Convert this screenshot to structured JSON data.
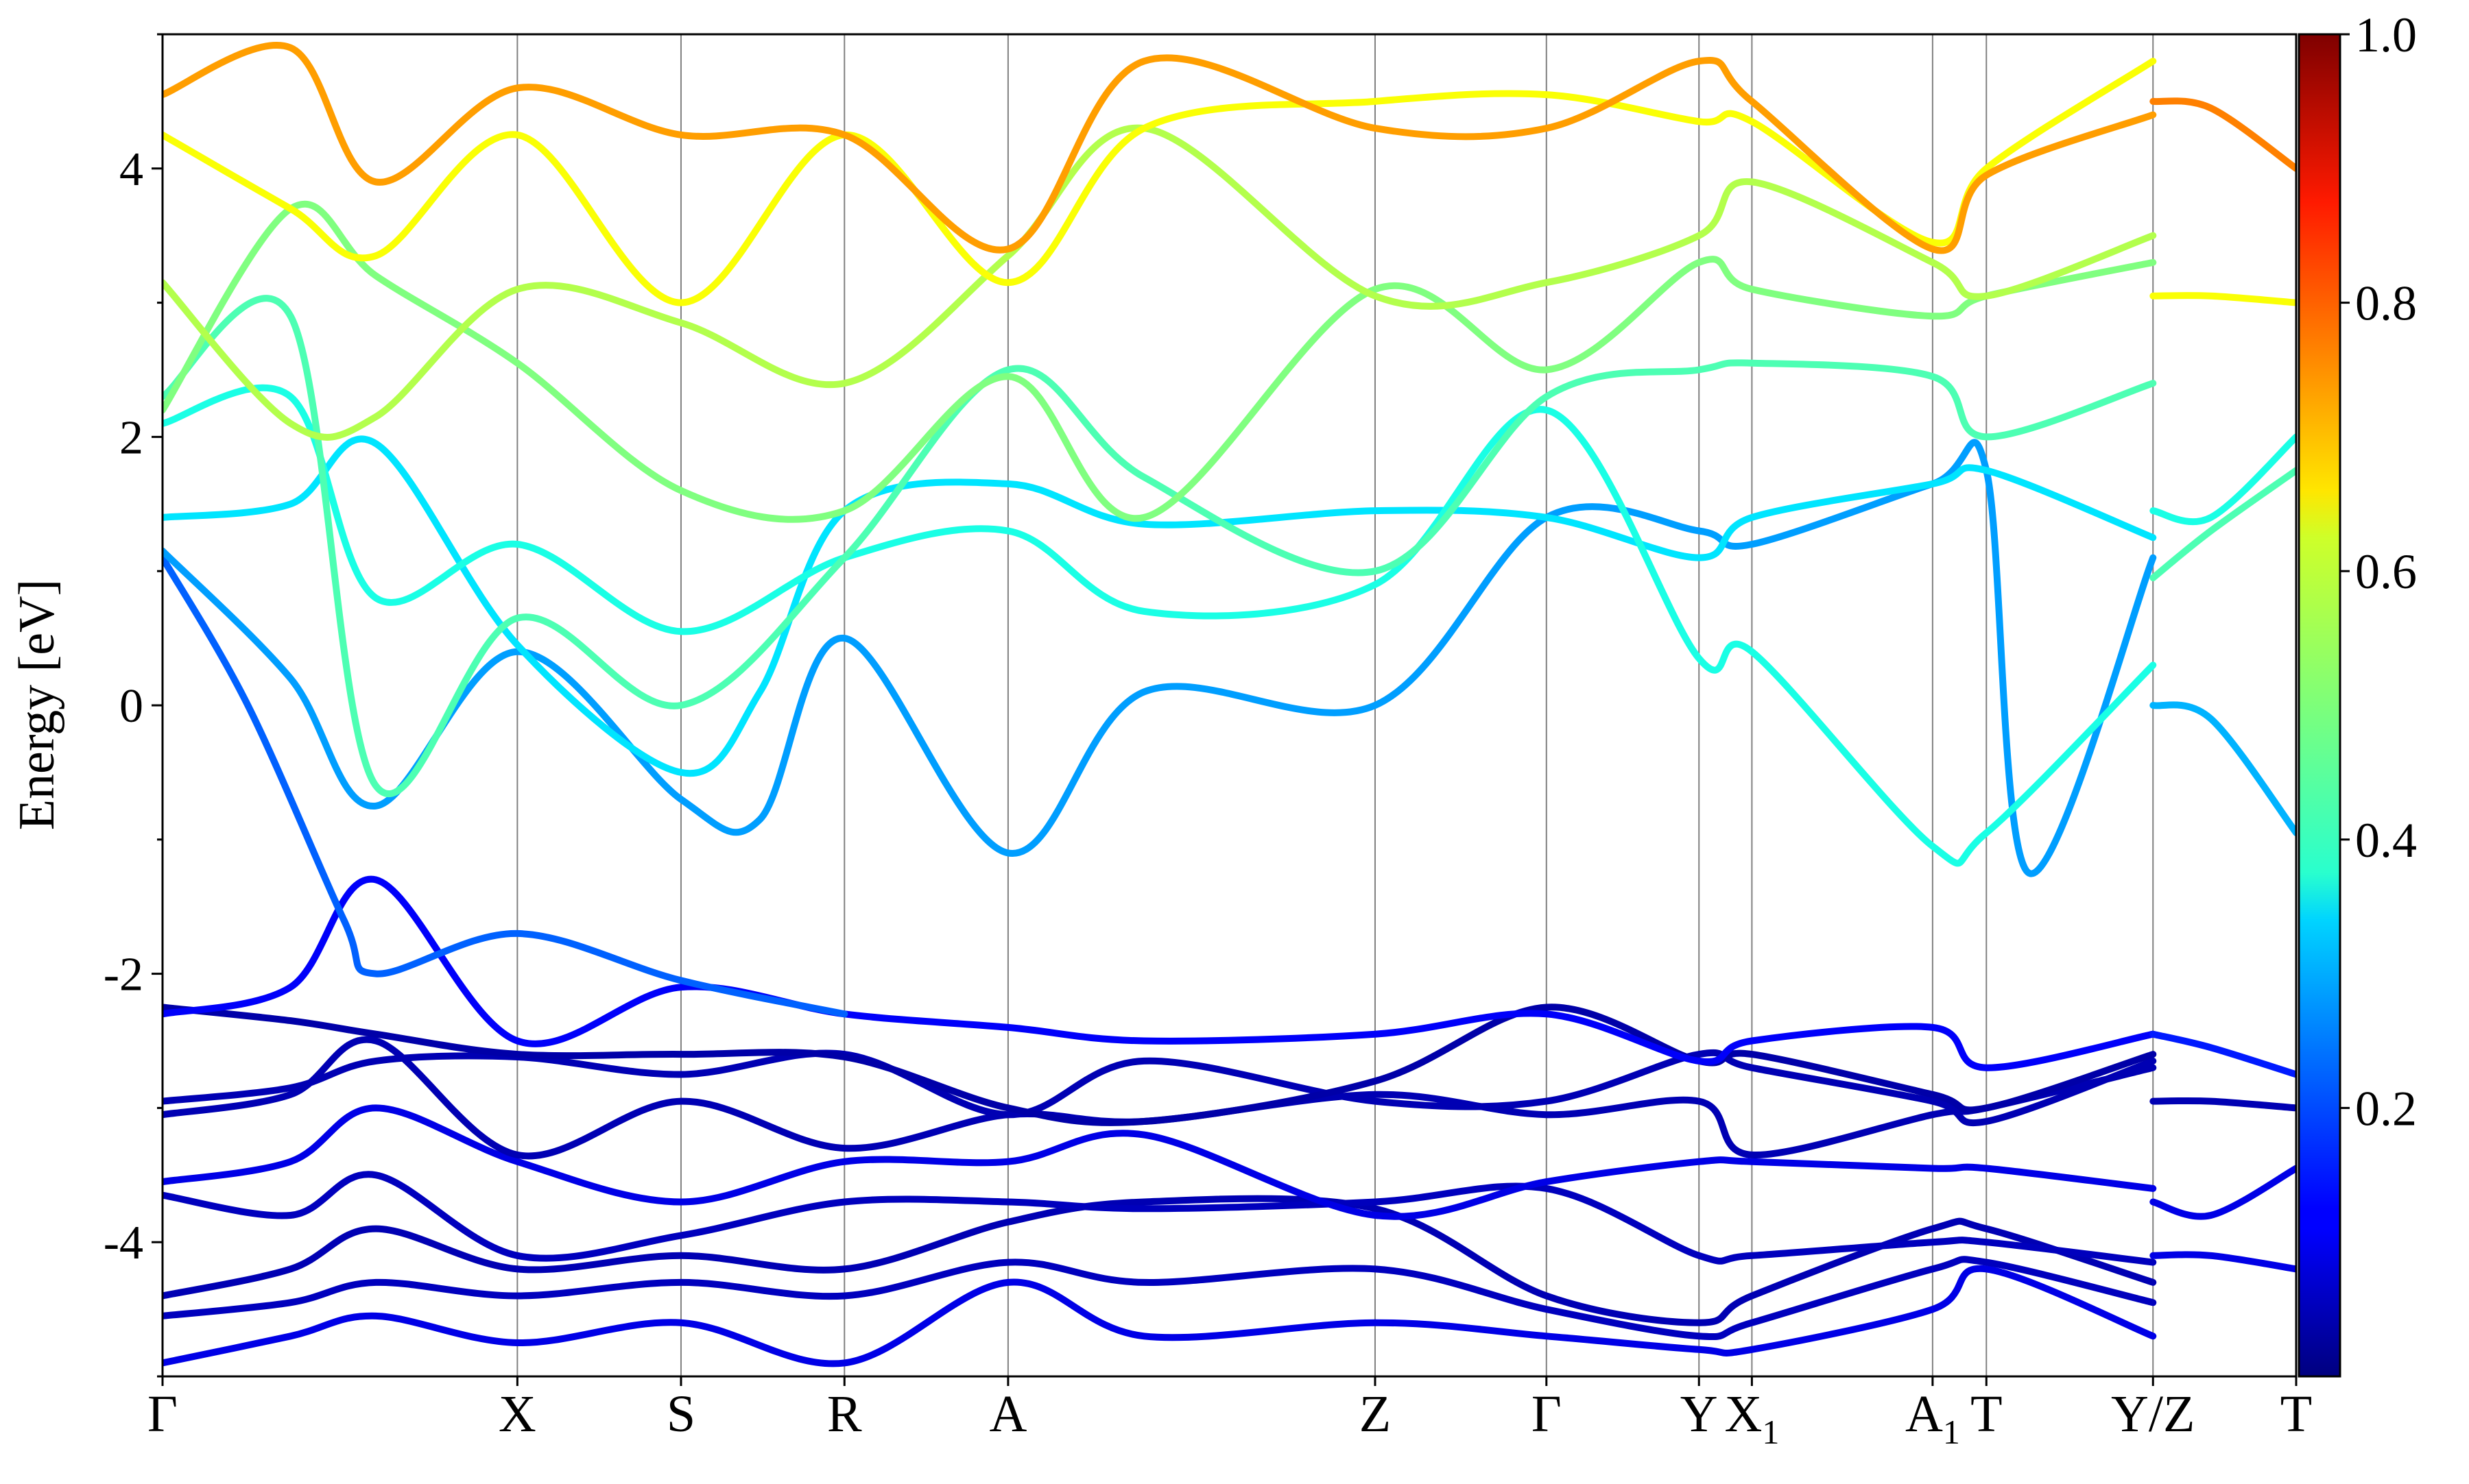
{
  "chart_data": {
    "type": "line",
    "title": "",
    "xlabel": "",
    "ylabel": "Energy [eV]",
    "ylim": [
      -5,
      5
    ],
    "yticks": [
      -4,
      -2,
      0,
      2,
      4
    ],
    "ytick_labels": [
      "-4",
      "-2",
      "0",
      "2",
      "4"
    ],
    "grid": false,
    "kpath_ticks": [
      {
        "label": "Γ",
        "sub": "",
        "pos": 0.0
      },
      {
        "label": "X",
        "sub": "",
        "pos": 0.1663
      },
      {
        "label": "S",
        "sub": "",
        "pos": 0.243
      },
      {
        "label": "R",
        "sub": "",
        "pos": 0.3196
      },
      {
        "label": "A",
        "sub": "",
        "pos": 0.3963
      },
      {
        "label": "Z",
        "sub": "",
        "pos": 0.5683
      },
      {
        "label": "Γ",
        "sub": "",
        "pos": 0.6486
      },
      {
        "label": "Y",
        "sub": "",
        "pos": 0.7201
      },
      {
        "label": "X",
        "sub": "1",
        "pos": 0.7449
      },
      {
        "label": "A",
        "sub": "1",
        "pos": 0.8296
      },
      {
        "label": "T",
        "sub": "",
        "pos": 0.8548
      },
      {
        "label": "Y/Z",
        "sub": "",
        "pos": 0.9329
      },
      {
        "label": "T",
        "sub": "",
        "pos": 1.0
      }
    ],
    "colorbar": {
      "colormap": "jet",
      "range": [
        0.0,
        1.0
      ],
      "ticks": [
        0.2,
        0.4,
        0.6,
        0.8,
        1.0
      ],
      "tick_labels": [
        "0.2",
        "0.4",
        "0.6",
        "0.8",
        "1.0"
      ]
    },
    "series": [
      {
        "x": [
          0,
          0.06,
          0.1,
          0.1663,
          0.243,
          0.3196,
          0.3963,
          0.46,
          0.5683,
          0.6486,
          0.7201,
          0.7449,
          0.8296,
          0.8548,
          0.9329
        ],
        "values": [
          -4.9,
          -4.7,
          -4.55,
          -4.75,
          -4.6,
          -4.9,
          -4.3,
          -4.7,
          -4.6,
          -4.7,
          -4.8,
          -4.8,
          -4.5,
          -4.2,
          -4.7
        ],
        "weight": 0.1
      },
      {
        "x": [
          0,
          0.06,
          0.1,
          0.1663,
          0.243,
          0.3196,
          0.3963,
          0.46,
          0.5683,
          0.6486,
          0.7201,
          0.7449,
          0.8296,
          0.8548,
          0.9329
        ],
        "values": [
          -4.55,
          -4.45,
          -4.3,
          -4.4,
          -4.3,
          -4.4,
          -4.15,
          -4.3,
          -4.2,
          -4.5,
          -4.7,
          -4.6,
          -4.2,
          -4.15,
          -4.45
        ],
        "weight": 0.06
      },
      {
        "x": [
          0,
          0.06,
          0.1,
          0.1663,
          0.243,
          0.3196,
          0.3963,
          0.46,
          0.5683,
          0.6486,
          0.7201,
          0.7449,
          0.8296,
          0.8548,
          0.9329
        ],
        "values": [
          -4.4,
          -4.2,
          -3.9,
          -4.2,
          -4.1,
          -4.2,
          -3.85,
          -3.7,
          -3.75,
          -4.4,
          -4.6,
          -4.4,
          -3.9,
          -3.9,
          -4.3
        ],
        "weight": 0.05
      },
      {
        "x": [
          0,
          0.06,
          0.1,
          0.1663,
          0.243,
          0.3196,
          0.3963,
          0.46,
          0.5683,
          0.6486,
          0.7201,
          0.7449,
          0.8296,
          0.8548,
          0.9329
        ],
        "values": [
          -3.65,
          -3.8,
          -3.5,
          -4.1,
          -3.95,
          -3.7,
          -3.7,
          -3.75,
          -3.7,
          -3.6,
          -4.1,
          -4.1,
          -4.0,
          -4.0,
          -4.15
        ],
        "weight": 0.06
      },
      {
        "x": [
          0,
          0.06,
          0.1,
          0.1663,
          0.243,
          0.3196,
          0.3963,
          0.46,
          0.5683,
          0.6486,
          0.7201,
          0.7449,
          0.8296,
          0.8548,
          0.9329
        ],
        "values": [
          -3.55,
          -3.4,
          -3.0,
          -3.4,
          -3.7,
          -3.4,
          -3.4,
          -3.2,
          -3.8,
          -3.55,
          -3.4,
          -3.4,
          -3.45,
          -3.45,
          -3.6
        ],
        "weight": 0.1
      },
      {
        "x": [
          0,
          0.06,
          0.1,
          0.1663,
          0.243,
          0.3196,
          0.3963,
          0.46,
          0.5683,
          0.6486,
          0.7201,
          0.7449,
          0.8296,
          0.8548,
          0.9329
        ],
        "values": [
          -3.05,
          -2.9,
          -2.5,
          -3.35,
          -2.95,
          -3.3,
          -3.05,
          -3.1,
          -2.9,
          -3.05,
          -2.95,
          -3.35,
          -3.05,
          -3.0,
          -2.7
        ],
        "weight": 0.05
      },
      {
        "x": [
          0,
          0.06,
          0.1,
          0.1663,
          0.243,
          0.3196,
          0.3963,
          0.46,
          0.5683,
          0.6486,
          0.7201,
          0.7449,
          0.8296,
          0.8548,
          0.9329
        ],
        "values": [
          -2.95,
          -2.85,
          -2.65,
          -2.62,
          -2.75,
          -2.6,
          -3.05,
          -2.65,
          -2.95,
          -2.95,
          -2.6,
          -2.7,
          -2.95,
          -3.1,
          -2.65
        ],
        "weight": 0.05
      },
      {
        "x": [
          0,
          0.06,
          0.1,
          0.1663,
          0.243,
          0.3196,
          0.3963,
          0.46,
          0.5683,
          0.6486,
          0.7201,
          0.7449,
          0.8296,
          0.8548,
          0.9329
        ],
        "values": [
          -2.25,
          -2.35,
          -2.45,
          -2.6,
          -2.6,
          -2.62,
          -3.0,
          -3.1,
          -2.8,
          -2.25,
          -2.65,
          -2.6,
          -2.9,
          -3.0,
          -2.6
        ],
        "weight": 0.04
      },
      {
        "x": [
          0,
          0.06,
          0.1,
          0.1663,
          0.243,
          0.3196,
          0.3963,
          0.46,
          0.5683,
          0.6486,
          0.7201,
          0.7449,
          0.8296,
          0.8548,
          0.9329
        ],
        "values": [
          -2.3,
          -2.1,
          -1.3,
          -2.5,
          -2.1,
          -2.3,
          -2.4,
          -2.5,
          -2.45,
          -2.3,
          -2.65,
          -2.5,
          -2.4,
          -2.7,
          -2.45
        ],
        "weight": 0.12
      },
      {
        "x": [
          0,
          0.04,
          0.085,
          0.1,
          0.1663,
          0.243,
          0.3196
        ],
        "values": [
          1.1,
          0.0,
          -1.6,
          -2.0,
          -1.7,
          -2.05,
          -2.3
        ],
        "weight": 0.22
      },
      {
        "x": [
          0,
          0.06,
          0.1,
          0.1663,
          0.243,
          0.28,
          0.3196,
          0.3963,
          0.46,
          0.5683,
          0.6486,
          0.7201,
          0.7449,
          0.8296,
          0.8548,
          0.8748,
          0.9329
        ],
        "values": [
          1.15,
          0.2,
          -0.75,
          0.4,
          -0.7,
          -0.85,
          0.5,
          -1.1,
          0.1,
          0.0,
          1.4,
          1.3,
          1.2,
          1.65,
          1.75,
          -1.25,
          1.1
        ],
        "weight": 0.28
      },
      {
        "x": [
          0,
          0.06,
          0.1,
          0.1663,
          0.243,
          0.28,
          0.3196,
          0.3963,
          0.46,
          0.5683,
          0.6486,
          0.7201,
          0.7449,
          0.8296,
          0.8548,
          0.9329
        ],
        "values": [
          1.4,
          1.5,
          1.95,
          0.45,
          -0.5,
          0.1,
          1.45,
          1.65,
          1.35,
          1.45,
          1.4,
          1.1,
          1.4,
          1.65,
          1.75,
          1.25
        ],
        "weight": 0.35
      },
      {
        "x": [
          0,
          0.06,
          0.1,
          0.1663,
          0.243,
          0.3196,
          0.3963,
          0.46,
          0.5683,
          0.6486,
          0.7201,
          0.7449,
          0.8296,
          0.8548,
          0.9329
        ],
        "values": [
          2.1,
          2.3,
          0.8,
          1.2,
          0.55,
          1.1,
          1.3,
          0.7,
          0.9,
          2.2,
          0.35,
          0.4,
          -1.05,
          -0.95,
          0.3
        ],
        "weight": 0.4
      },
      {
        "x": [
          0,
          0.06,
          0.1,
          0.1663,
          0.243,
          0.3196,
          0.3963,
          0.46,
          0.5683,
          0.6486,
          0.7201,
          0.7449,
          0.8296,
          0.8548,
          0.9329
        ],
        "values": [
          2.3,
          2.9,
          -0.6,
          0.65,
          0.0,
          1.1,
          2.5,
          1.7,
          1.0,
          2.3,
          2.5,
          2.55,
          2.45,
          2.0,
          2.4
        ],
        "weight": 0.45
      },
      {
        "x": [
          0,
          0.06,
          0.1,
          0.1663,
          0.243,
          0.3196,
          0.3963,
          0.46,
          0.5683,
          0.6486,
          0.7201,
          0.7449,
          0.8296,
          0.8548,
          0.9329
        ],
        "values": [
          2.2,
          3.7,
          3.2,
          2.55,
          1.6,
          1.45,
          2.45,
          1.4,
          3.1,
          2.5,
          3.3,
          3.1,
          2.9,
          3.05,
          3.3
        ],
        "weight": 0.5
      },
      {
        "x": [
          0,
          0.06,
          0.1,
          0.1663,
          0.243,
          0.3196,
          0.3963,
          0.46,
          0.5683,
          0.6486,
          0.7201,
          0.7449,
          0.8296,
          0.8548,
          0.9329
        ],
        "values": [
          3.15,
          2.1,
          2.15,
          3.1,
          2.85,
          2.4,
          3.35,
          4.3,
          3.05,
          3.15,
          3.5,
          3.9,
          3.3,
          3.05,
          3.5
        ],
        "weight": 0.55
      },
      {
        "x": [
          0,
          0.06,
          0.1,
          0.1663,
          0.243,
          0.3196,
          0.3963,
          0.46,
          0.5683,
          0.6486,
          0.7201,
          0.7449,
          0.8296,
          0.8548,
          0.9329
        ],
        "values": [
          4.25,
          3.7,
          3.35,
          4.25,
          3.0,
          4.25,
          3.15,
          4.3,
          4.5,
          4.55,
          4.35,
          4.35,
          3.45,
          4.0,
          4.8
        ],
        "weight": 0.62
      },
      {
        "x": [
          0,
          0.06,
          0.1,
          0.1663,
          0.243,
          0.3196,
          0.3963,
          0.46,
          0.5683,
          0.6486,
          0.7201,
          0.7449,
          0.8296,
          0.8548,
          0.9329
        ],
        "values": [
          4.55,
          4.9,
          3.9,
          4.6,
          4.25,
          4.25,
          3.4,
          4.8,
          4.3,
          4.3,
          4.8,
          4.5,
          3.4,
          3.95,
          4.4
        ],
        "weight": 0.72
      },
      {
        "x": [
          0.9329,
          0.96,
          1.0
        ],
        "values": [
          -4.1,
          -4.1,
          -4.2
        ],
        "weight": 0.1
      },
      {
        "x": [
          0.9329,
          0.96,
          1.0
        ],
        "values": [
          -3.7,
          -3.8,
          -3.45
        ],
        "weight": 0.1
      },
      {
        "x": [
          0.9329,
          0.96,
          1.0
        ],
        "values": [
          -2.95,
          -2.95,
          -3.0
        ],
        "weight": 0.05
      },
      {
        "x": [
          0.9329,
          0.96,
          1.0
        ],
        "values": [
          -2.45,
          -2.55,
          -2.75
        ],
        "weight": 0.15
      },
      {
        "x": [
          0.9329,
          0.96,
          1.0
        ],
        "values": [
          0.0,
          -0.1,
          -0.95
        ],
        "weight": 0.3
      },
      {
        "x": [
          0.9329,
          0.96,
          1.0
        ],
        "values": [
          0.95,
          1.3,
          1.75
        ],
        "weight": 0.45
      },
      {
        "x": [
          0.9329,
          0.96,
          1.0
        ],
        "values": [
          1.45,
          1.4,
          2.0
        ],
        "weight": 0.4
      },
      {
        "x": [
          0.9329,
          0.96,
          1.0
        ],
        "values": [
          3.05,
          3.05,
          3.0
        ],
        "weight": 0.62
      },
      {
        "x": [
          0.9329,
          0.96,
          1.0
        ],
        "values": [
          4.5,
          4.45,
          4.0
        ],
        "weight": 0.75
      }
    ]
  }
}
